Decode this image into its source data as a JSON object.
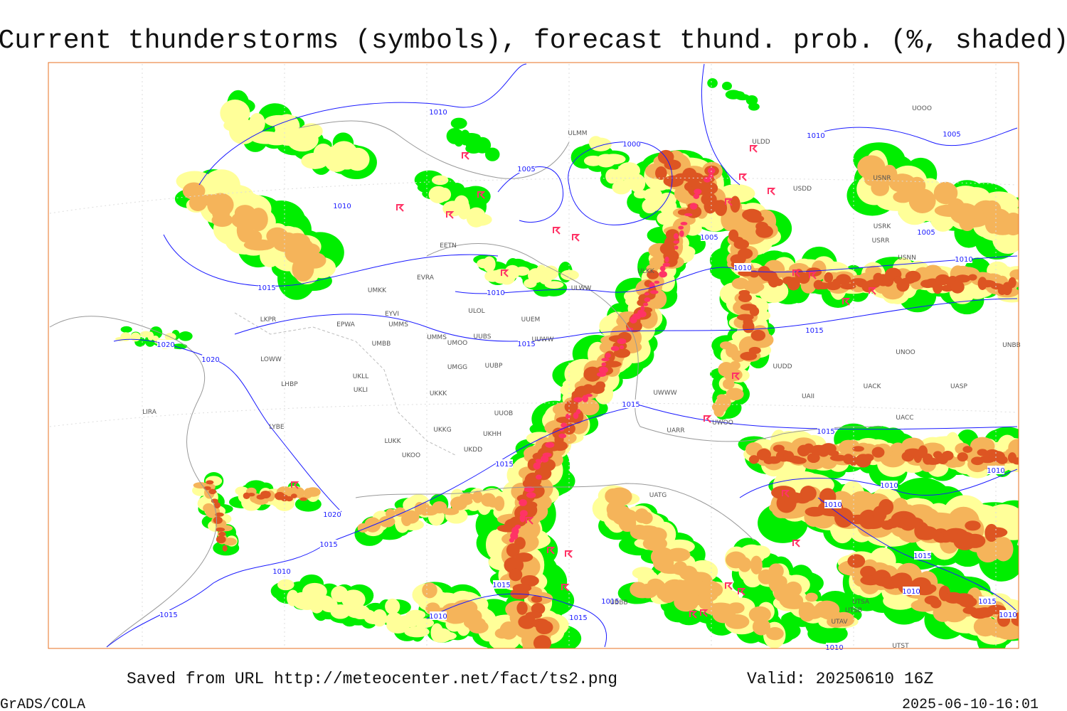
{
  "title": "Current thunderstorms (symbols), forecast thund. prob. (%, shaded)",
  "footer": {
    "source": "Saved from URL http://meteocenter.net/fact/ts2.png",
    "valid": "Valid: 20250610 16Z",
    "software": "GrADS/COLA",
    "timestamp": "2025-06-10-16:01"
  },
  "isobar_labels": [
    "1010",
    "1010",
    "1015",
    "1020",
    "1020",
    "1005",
    "1000",
    "1010",
    "1015",
    "1005",
    "1010",
    "1010",
    "1005",
    "1005",
    "1010",
    "1015",
    "1015",
    "1015",
    "1015",
    "1020",
    "1015",
    "1010",
    "1015",
    "1015",
    "1015",
    "1015",
    "1010",
    "1010",
    "1010",
    "1015",
    "1010",
    "1015",
    "1010",
    "1010",
    "1010"
  ],
  "station_labels": [
    "ULMM",
    "ULDD",
    "USDD",
    "USRK",
    "USRR",
    "USNN",
    "ULKK",
    "ULWW",
    "UUEM",
    "EYVI",
    "EPWA",
    "UMMS",
    "UMBB",
    "UMMS",
    "UMOO",
    "UUBS",
    "UUWW",
    "LKPR",
    "LOWW",
    "LHBP",
    "UKLL",
    "UKLI",
    "UMGG",
    "UUBP",
    "UKKK",
    "UUOB",
    "LYBE",
    "UKHH",
    "UKDD",
    "UKKG",
    "LUKK",
    "UKOO",
    "LIRA",
    "UARR",
    "UWOO",
    "UNBB",
    "UNOO",
    "UACK",
    "UASP",
    "UACC",
    "UAII",
    "UTSA",
    "UTSB",
    "UTAV",
    "UTST",
    "EETN",
    "EVRA",
    "UMKK",
    "ULOL",
    "UOOO",
    "USNR",
    "UUDD",
    "UWWW",
    "UATG",
    "UBBB"
  ]
}
